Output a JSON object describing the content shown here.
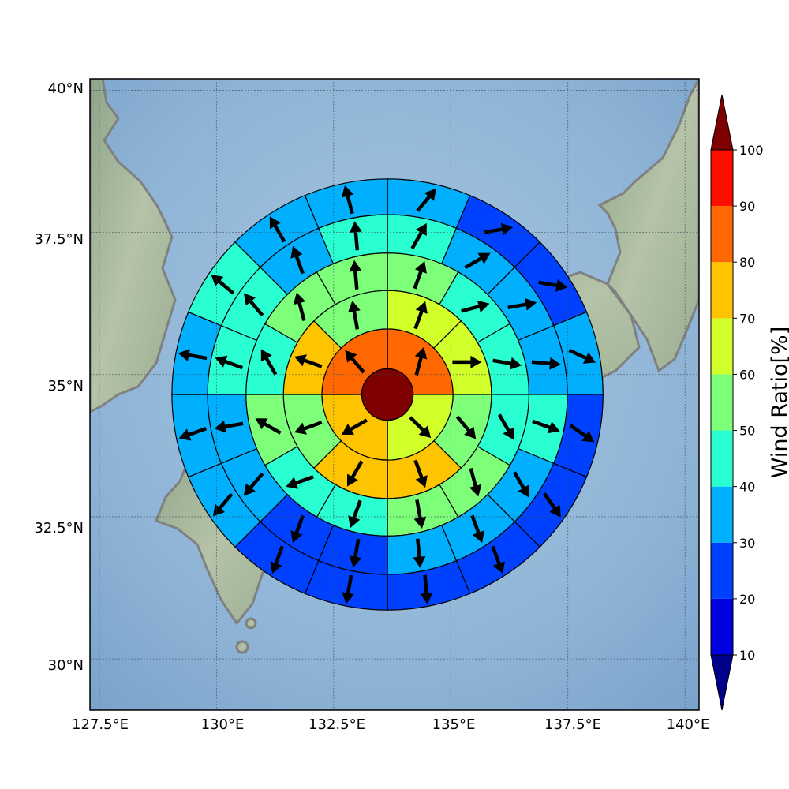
{
  "map": {
    "lon_range": [
      127.3,
      140.3
    ],
    "lat_range": [
      29.1,
      40.2
    ],
    "lon_ticks": [
      "127.5°E",
      "130°E",
      "132.5°E",
      "135°E",
      "137.5°E",
      "140°E"
    ],
    "lat_ticks": [
      "40°N",
      "37.5°N",
      "35°N",
      "32.5°N",
      "30°N"
    ],
    "center": [
      133.65,
      34.65
    ],
    "coastline_color": "#808080",
    "grid": true
  },
  "colorbar": {
    "label": "Wind Ratio[%]",
    "ticks": [
      "10",
      "20",
      "30",
      "40",
      "50",
      "60",
      "70",
      "80",
      "90",
      "100"
    ],
    "colors": [
      "#00008b",
      "#0000e0",
      "#0040ff",
      "#00b0ff",
      "#29ffd0",
      "#7dff7a",
      "#d0ff2a",
      "#ffc400",
      "#ff6800",
      "#ff0e00",
      "#7f0000"
    ]
  },
  "chart_data": {
    "type": "polar-grid",
    "rings_deg_radius": [
      0.55,
      1.4,
      2.22,
      3.02,
      3.84,
      4.6
    ],
    "sectors_per_ring": [
      1,
      4,
      8,
      12,
      16,
      16
    ],
    "sector_order": "clockwise from north",
    "ratios": [
      [
        100
      ],
      [
        85,
        65,
        75,
        85
      ],
      [
        65,
        65,
        55,
        75,
        75,
        55,
        75,
        55
      ],
      [
        55,
        45,
        45,
        45,
        55,
        55,
        45,
        45,
        55,
        45,
        55,
        55
      ],
      [
        45,
        35,
        35,
        35,
        45,
        35,
        35,
        35,
        25,
        25,
        35,
        35,
        45,
        45,
        35,
        45
      ],
      [
        35,
        25,
        25,
        35,
        25,
        25,
        25,
        25,
        25,
        25,
        35,
        35,
        35,
        45,
        35,
        35
      ]
    ],
    "wind_dir_deg": [
      [],
      [
        15,
        135,
        240,
        320
      ],
      [
        20,
        90,
        140,
        160,
        210,
        250,
        290,
        350
      ],
      [
        20,
        75,
        100,
        150,
        165,
        170,
        200,
        250,
        300,
        330,
        345,
        355
      ],
      [
        30,
        60,
        80,
        95,
        110,
        150,
        160,
        175,
        190,
        200,
        220,
        260,
        290,
        320,
        340,
        355
      ],
      [
        40,
        80,
        100,
        115,
        125,
        145,
        160,
        175,
        190,
        200,
        220,
        250,
        280,
        310,
        330,
        345
      ]
    ],
    "colorbar_label": "Wind Ratio[%]"
  }
}
